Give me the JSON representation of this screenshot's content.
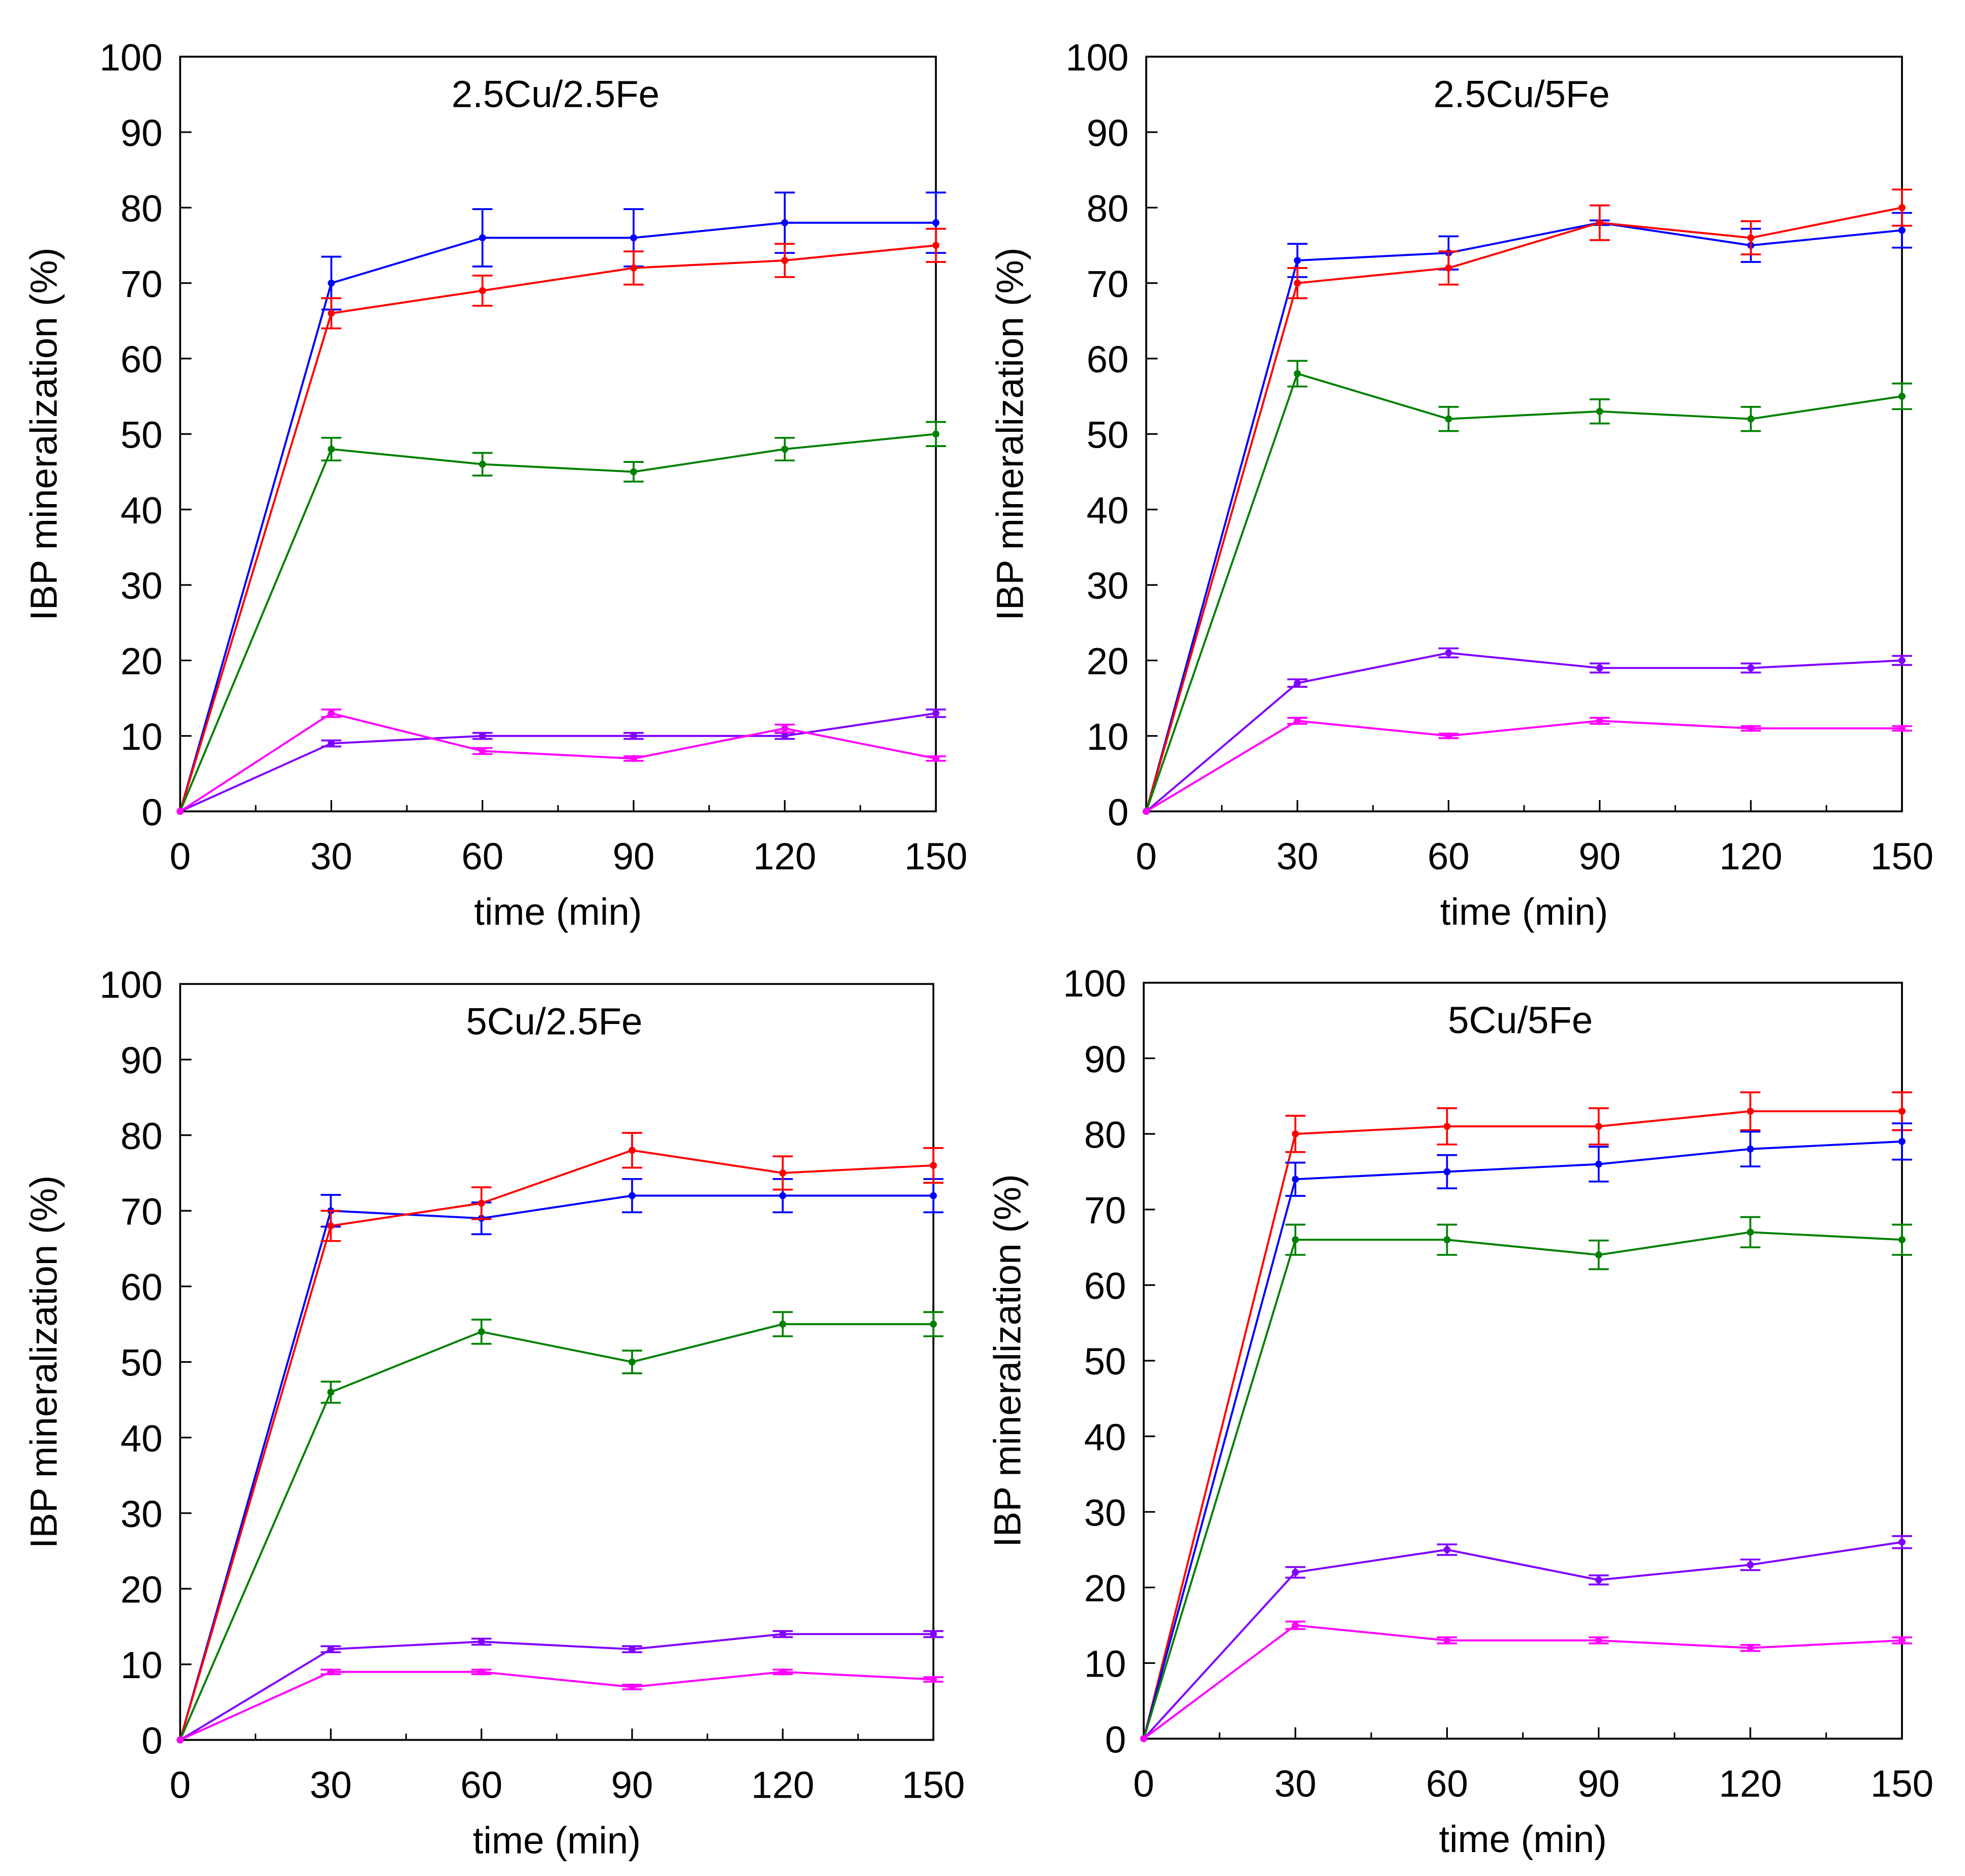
{
  "chart_data": [
    {
      "type": "line",
      "title": "2.5Cu/2.5Fe",
      "xlabel": "time (min)",
      "ylabel": "IBP mineralization (%)",
      "xlim": [
        0,
        150
      ],
      "ylim": [
        0,
        100
      ],
      "xticks": [
        0,
        30,
        60,
        90,
        120,
        150
      ],
      "yticks": [
        0,
        10,
        20,
        30,
        40,
        50,
        60,
        70,
        80,
        90,
        100
      ],
      "x": [
        0,
        30,
        60,
        90,
        120,
        150
      ],
      "series": [
        {
          "name": "blue",
          "color": "#0000ff",
          "values": [
            0,
            70,
            76,
            76,
            78,
            78
          ],
          "error": [
            0,
            3.5,
            3.8,
            3.8,
            4,
            4
          ]
        },
        {
          "name": "red",
          "color": "#ff0000",
          "values": [
            0,
            66,
            69,
            72,
            73,
            75
          ],
          "error": [
            0,
            2,
            2,
            2.2,
            2.2,
            2.2
          ]
        },
        {
          "name": "green",
          "color": "#008000",
          "values": [
            0,
            48,
            46,
            45,
            48,
            50
          ],
          "error": [
            0,
            1.5,
            1.5,
            1.3,
            1.5,
            1.6
          ]
        },
        {
          "name": "purple",
          "color": "#8000ff",
          "values": [
            0,
            9,
            10,
            10,
            10,
            13
          ],
          "error": [
            0,
            0.4,
            0.4,
            0.4,
            0.4,
            0.5
          ]
        },
        {
          "name": "magenta",
          "color": "#ff00ff",
          "values": [
            0,
            13,
            8,
            7,
            11,
            7
          ],
          "error": [
            0,
            0.5,
            0.4,
            0.3,
            0.5,
            0.3
          ]
        }
      ]
    },
    {
      "type": "line",
      "title": "2.5Cu/5Fe",
      "xlabel": "time (min)",
      "ylabel": "IBP mineralization (%)",
      "xlim": [
        0,
        150
      ],
      "ylim": [
        0,
        100
      ],
      "xticks": [
        0,
        30,
        60,
        90,
        120,
        150
      ],
      "yticks": [
        0,
        10,
        20,
        30,
        40,
        50,
        60,
        70,
        80,
        90,
        100
      ],
      "x": [
        0,
        30,
        60,
        90,
        120,
        150
      ],
      "series": [
        {
          "name": "blue",
          "color": "#0000ff",
          "values": [
            0,
            73,
            74,
            78,
            75,
            77
          ],
          "error": [
            0,
            2.2,
            2.2,
            0.3,
            2.2,
            2.3
          ]
        },
        {
          "name": "red",
          "color": "#ff0000",
          "values": [
            0,
            70,
            72,
            78,
            76,
            80
          ],
          "error": [
            0,
            2,
            2.2,
            2.3,
            2.2,
            2.4
          ]
        },
        {
          "name": "green",
          "color": "#008000",
          "values": [
            0,
            58,
            52,
            53,
            52,
            55
          ],
          "error": [
            0,
            1.7,
            1.6,
            1.6,
            1.6,
            1.7
          ]
        },
        {
          "name": "purple",
          "color": "#8000ff",
          "values": [
            0,
            17,
            21,
            19,
            19,
            20
          ],
          "error": [
            0,
            0.5,
            0.6,
            0.6,
            0.6,
            0.6
          ]
        },
        {
          "name": "magenta",
          "color": "#ff00ff",
          "values": [
            0,
            12,
            10,
            12,
            11,
            11
          ],
          "error": [
            0,
            0.4,
            0.3,
            0.4,
            0.3,
            0.3
          ]
        }
      ]
    },
    {
      "type": "line",
      "title": "5Cu/2.5Fe",
      "xlabel": "time (min)",
      "ylabel": "IBP mineralization (%)",
      "xlim": [
        0,
        150
      ],
      "ylim": [
        0,
        100
      ],
      "xticks": [
        0,
        30,
        60,
        90,
        120,
        150
      ],
      "yticks": [
        0,
        10,
        20,
        30,
        40,
        50,
        60,
        70,
        80,
        90,
        100
      ],
      "x": [
        0,
        30,
        60,
        90,
        120,
        150
      ],
      "series": [
        {
          "name": "blue",
          "color": "#0000ff",
          "values": [
            0,
            70,
            69,
            72,
            72,
            72
          ],
          "error": [
            0,
            2.1,
            2.1,
            2.2,
            2.2,
            2.2
          ]
        },
        {
          "name": "red",
          "color": "#ff0000",
          "values": [
            0,
            68,
            71,
            78,
            75,
            76
          ],
          "error": [
            0,
            2,
            2.1,
            2.3,
            2.2,
            2.3
          ]
        },
        {
          "name": "green",
          "color": "#008000",
          "values": [
            0,
            46,
            54,
            50,
            55,
            55
          ],
          "error": [
            0,
            1.4,
            1.6,
            1.5,
            1.6,
            1.6
          ]
        },
        {
          "name": "purple",
          "color": "#8000ff",
          "values": [
            0,
            12,
            13,
            12,
            14,
            14
          ],
          "error": [
            0,
            0.4,
            0.4,
            0.4,
            0.4,
            0.4
          ]
        },
        {
          "name": "magenta",
          "color": "#ff00ff",
          "values": [
            0,
            9,
            9,
            7,
            9,
            8
          ],
          "error": [
            0,
            0.3,
            0.3,
            0.3,
            0.3,
            0.3
          ]
        }
      ]
    },
    {
      "type": "line",
      "title": "5Cu/5Fe",
      "xlabel": "time (min)",
      "ylabel": "IBP mineralization (%)",
      "xlim": [
        0,
        150
      ],
      "ylim": [
        0,
        100
      ],
      "xticks": [
        0,
        30,
        60,
        90,
        120,
        150
      ],
      "yticks": [
        0,
        10,
        20,
        30,
        40,
        50,
        60,
        70,
        80,
        90,
        100
      ],
      "x": [
        0,
        30,
        60,
        90,
        120,
        150
      ],
      "series": [
        {
          "name": "red",
          "color": "#ff0000",
          "values": [
            0,
            80,
            81,
            81,
            83,
            83
          ],
          "error": [
            0,
            2.4,
            2.4,
            2.4,
            2.5,
            2.5
          ]
        },
        {
          "name": "blue",
          "color": "#0000ff",
          "values": [
            0,
            74,
            75,
            76,
            78,
            79
          ],
          "error": [
            0,
            2.2,
            2.2,
            2.3,
            2.3,
            2.4
          ]
        },
        {
          "name": "green",
          "color": "#008000",
          "values": [
            0,
            66,
            66,
            64,
            67,
            66
          ],
          "error": [
            0,
            2,
            2,
            1.9,
            2,
            2
          ]
        },
        {
          "name": "purple",
          "color": "#8000ff",
          "values": [
            0,
            22,
            25,
            21,
            23,
            26
          ],
          "error": [
            0,
            0.7,
            0.7,
            0.6,
            0.7,
            0.8
          ]
        },
        {
          "name": "magenta",
          "color": "#ff00ff",
          "values": [
            0,
            15,
            13,
            13,
            12,
            13
          ],
          "error": [
            0,
            0.5,
            0.4,
            0.4,
            0.4,
            0.4
          ]
        }
      ]
    }
  ]
}
